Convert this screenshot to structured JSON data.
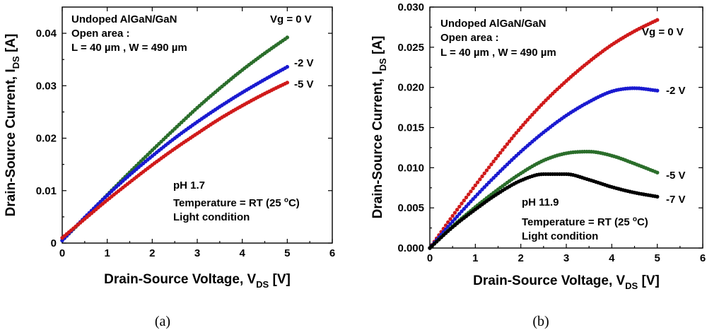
{
  "chart_data": [
    {
      "type": "scatter",
      "panel_label": "(a)",
      "xlabel": "Drain-Source Voltage, V",
      "xlabel_sub": "DS",
      "xlabel_unit": "[V]",
      "ylabel": "Drain-Source Current, I",
      "ylabel_sub": "DS",
      "ylabel_unit": "[A]",
      "xlim": [
        0,
        6
      ],
      "ylim": [
        0,
        0.045
      ],
      "xticks": [
        "0",
        "1",
        "2",
        "3",
        "4",
        "5",
        "6"
      ],
      "yticks": [
        "0",
        "0.01",
        "0.02",
        "0.03",
        "0.04"
      ],
      "ytick_values": [
        0,
        0.01,
        0.02,
        0.03,
        0.04
      ],
      "annotations": {
        "device": "Undoped AlGaN/GaN",
        "area": "Open area :",
        "dims": "L = 40 µm , W = 490 µm",
        "ph": "pH 1.7",
        "temp_a": "Temperature = RT (25 ",
        "temp_sup": "o",
        "temp_b": "C)",
        "light": "Light condition"
      },
      "series": [
        {
          "name": "Vg = 0 V",
          "color": "#2b6e2b",
          "x": [
            0,
            0.5,
            1,
            1.5,
            2,
            2.5,
            3,
            3.5,
            4,
            4.5,
            5
          ],
          "values": [
            0.0005,
            0.0048,
            0.0092,
            0.0135,
            0.0177,
            0.0218,
            0.0258,
            0.0295,
            0.033,
            0.0362,
            0.0392
          ]
        },
        {
          "name": "-2 V",
          "color": "#1a1ad0",
          "x": [
            0,
            0.5,
            1,
            1.5,
            2,
            2.5,
            3,
            3.5,
            4,
            4.5,
            5
          ],
          "values": [
            0.0005,
            0.0049,
            0.0091,
            0.013,
            0.0166,
            0.02,
            0.0231,
            0.026,
            0.0287,
            0.0312,
            0.0336
          ]
        },
        {
          "name": "-5 V",
          "color": "#d01a1a",
          "x": [
            0,
            0.5,
            1,
            1.5,
            2,
            2.5,
            3,
            3.5,
            4,
            4.5,
            5
          ],
          "values": [
            0.001,
            0.0046,
            0.0082,
            0.0116,
            0.0149,
            0.018,
            0.0209,
            0.0237,
            0.0262,
            0.0285,
            0.0306
          ]
        }
      ],
      "series_labels": [
        "Vg = 0 V",
        "-2 V",
        "-5 V"
      ]
    },
    {
      "type": "scatter",
      "panel_label": "(b)",
      "xlabel": "Drain-Source Voltage, V",
      "xlabel_sub": "DS",
      "xlabel_unit": "[V]",
      "ylabel": "Drain-Source Current, I",
      "ylabel_sub": "DS",
      "ylabel_unit": "[A]",
      "xlim": [
        0,
        6
      ],
      "ylim": [
        0,
        0.03
      ],
      "xticks": [
        "0",
        "1",
        "2",
        "3",
        "4",
        "5",
        "6"
      ],
      "yticks": [
        "0.000",
        "0.005",
        "0.010",
        "0.015",
        "0.020",
        "0.025",
        "0.030"
      ],
      "ytick_values": [
        0,
        0.005,
        0.01,
        0.015,
        0.02,
        0.025,
        0.03
      ],
      "annotations": {
        "device": "Undoped AlGaN/GaN",
        "area": "Open area :",
        "dims": "L = 40 µm , W = 490 µm",
        "ph": "pH 11.9",
        "temp_a": "Temperature = RT (25 ",
        "temp_sup": "o",
        "temp_b": "C)",
        "light": "Light condition"
      },
      "series": [
        {
          "name": "Vg = 0 V",
          "color": "#d01a1a",
          "x": [
            0,
            0.5,
            1,
            1.5,
            2,
            2.5,
            3,
            3.5,
            4,
            4.5,
            5
          ],
          "values": [
            0,
            0.004,
            0.0078,
            0.0115,
            0.015,
            0.0181,
            0.0208,
            0.0232,
            0.0253,
            0.027,
            0.0284
          ]
        },
        {
          "name": "-2 V",
          "color": "#1a1ad0",
          "x": [
            0,
            0.5,
            1,
            1.5,
            2,
            2.5,
            3,
            3.5,
            4,
            4.5,
            5
          ],
          "values": [
            0,
            0.0033,
            0.0064,
            0.0093,
            0.012,
            0.0144,
            0.0165,
            0.0182,
            0.0195,
            0.0199,
            0.0196
          ]
        },
        {
          "name": "-5 V",
          "color": "#2b6e2b",
          "x": [
            0,
            0.5,
            1,
            1.5,
            2,
            2.5,
            3,
            3.5,
            4,
            4.5,
            5
          ],
          "values": [
            0,
            0.0027,
            0.0051,
            0.0073,
            0.0093,
            0.0109,
            0.0118,
            0.012,
            0.0115,
            0.0105,
            0.0094
          ]
        },
        {
          "name": "-7 V",
          "color": "#000000",
          "x": [
            0,
            0.5,
            1,
            1.5,
            2,
            2.5,
            3,
            3.5,
            4,
            4.5,
            5
          ],
          "values": [
            0,
            0.0026,
            0.0048,
            0.0068,
            0.0084,
            0.0092,
            0.0092,
            0.0085,
            0.0076,
            0.0069,
            0.0064
          ]
        }
      ],
      "series_labels": [
        "Vg = 0 V",
        "-2 V",
        "-5 V",
        "-7 V"
      ]
    }
  ]
}
